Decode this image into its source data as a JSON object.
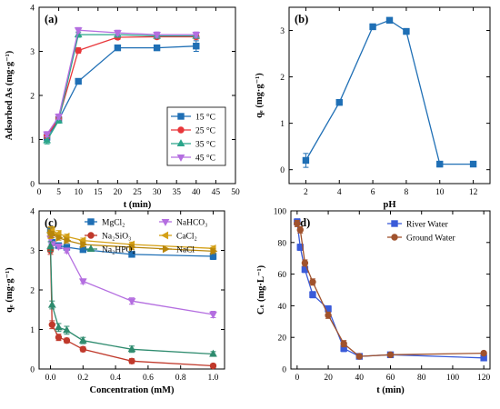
{
  "chart_data": [
    {
      "type": "line",
      "panel_label": "(a)",
      "xlabel": "t (min)",
      "ylabel": "Adsorbed As (mg·g⁻¹)",
      "xlim": [
        0,
        50
      ],
      "ylim": [
        0,
        4
      ],
      "xticks": [
        0,
        5,
        10,
        15,
        20,
        25,
        30,
        35,
        40,
        45,
        50
      ],
      "yticks": [
        0,
        1,
        2,
        3,
        4
      ],
      "legend_position": "bottom-right",
      "series": [
        {
          "name": "15 °C",
          "color": "#1f6fb5",
          "marker": "square",
          "x": [
            2,
            5,
            10,
            20,
            30,
            40
          ],
          "y": [
            1.05,
            1.45,
            2.32,
            3.08,
            3.08,
            3.12
          ],
          "err": [
            0.06,
            0.06,
            0.06,
            0.06,
            0.06,
            0.12
          ]
        },
        {
          "name": "25 °C",
          "color": "#e8363a",
          "marker": "circle",
          "x": [
            2,
            5,
            10,
            20,
            30,
            40
          ],
          "y": [
            1.08,
            1.48,
            3.02,
            3.32,
            3.33,
            3.33
          ],
          "err": [
            0.06,
            0.06,
            0.06,
            0.05,
            0.05,
            0.05
          ]
        },
        {
          "name": "35 °C",
          "color": "#2aa58a",
          "marker": "triangle",
          "x": [
            2,
            5,
            10,
            20,
            30,
            40
          ],
          "y": [
            0.98,
            1.43,
            3.38,
            3.38,
            3.35,
            3.35
          ],
          "err": [
            0.08,
            0.06,
            0.06,
            0.06,
            0.05,
            0.05
          ]
        },
        {
          "name": "45 °C",
          "color": "#b46ee0",
          "marker": "triangle-down",
          "x": [
            2,
            5,
            10,
            20,
            30,
            40
          ],
          "y": [
            1.12,
            1.52,
            3.48,
            3.42,
            3.38,
            3.38
          ],
          "err": [
            0.06,
            0.06,
            0.06,
            0.06,
            0.06,
            0.06
          ]
        }
      ]
    },
    {
      "type": "line",
      "panel_label": "(b)",
      "xlabel": "pH",
      "ylabel": "qₑ (mg·g⁻¹)",
      "xlim": [
        1,
        13
      ],
      "ylim": [
        -0.3,
        3.5
      ],
      "xticks": [
        2,
        4,
        6,
        8,
        10,
        12
      ],
      "yticks": [
        0,
        1,
        2,
        3
      ],
      "series": [
        {
          "name": "",
          "color": "#1f6fb5",
          "marker": "square",
          "x": [
            2,
            4,
            6,
            7,
            8,
            10,
            12
          ],
          "y": [
            0.2,
            1.45,
            3.08,
            3.22,
            2.98,
            0.12,
            0.12
          ],
          "err": [
            0.15,
            0.06,
            0.06,
            0.05,
            0.06,
            0.06,
            0.05
          ]
        }
      ]
    },
    {
      "type": "line",
      "panel_label": "(c)",
      "xlabel": "Concentration (mM)",
      "ylabel": "qₑ (mg·g⁻¹)",
      "xlim": [
        -0.07,
        1.07
      ],
      "ylim": [
        0,
        4
      ],
      "xticks": [
        0.0,
        0.2,
        0.4,
        0.6,
        0.8,
        1.0
      ],
      "yticks": [
        0,
        1,
        2,
        3,
        4
      ],
      "series": [
        {
          "name": "MgCl₂",
          "color": "#1f6fb5",
          "marker": "square",
          "x": [
            0,
            0.01,
            0.05,
            0.1,
            0.2,
            0.5,
            1.0
          ],
          "y": [
            3.5,
            3.2,
            3.12,
            3.08,
            3.02,
            2.9,
            2.85
          ],
          "err": [
            0.08,
            0.08,
            0.06,
            0.06,
            0.06,
            0.06,
            0.08
          ]
        },
        {
          "name": "NaHCO₃",
          "color": "#b46ee0",
          "marker": "triangle-down",
          "x": [
            0,
            0.01,
            0.05,
            0.1,
            0.2,
            0.5,
            1.0
          ],
          "y": [
            3.3,
            3.15,
            3.1,
            3.0,
            2.22,
            1.72,
            1.38
          ],
          "err": [
            0.08,
            0.08,
            0.06,
            0.06,
            0.06,
            0.08,
            0.08
          ]
        },
        {
          "name": "Na₂SiO₃",
          "color": "#c0392b",
          "marker": "circle",
          "x": [
            0,
            0.01,
            0.05,
            0.1,
            0.2,
            0.5,
            1.0
          ],
          "y": [
            3.0,
            1.12,
            0.8,
            0.72,
            0.5,
            0.2,
            0.08
          ],
          "err": [
            0.1,
            0.1,
            0.08,
            0.06,
            0.06,
            0.06,
            0.05
          ]
        },
        {
          "name": "CaCl₂",
          "color": "#d4a017",
          "marker": "triangle-left",
          "x": [
            0,
            0.01,
            0.05,
            0.1,
            0.2,
            0.5,
            1.0
          ],
          "y": [
            3.45,
            3.5,
            3.42,
            3.35,
            3.25,
            3.15,
            3.05
          ],
          "err": [
            0.15,
            0.1,
            0.08,
            0.06,
            0.06,
            0.06,
            0.06
          ]
        },
        {
          "name": "Na₂HPO₄",
          "color": "#2e8b6e",
          "marker": "triangle",
          "x": [
            0,
            0.01,
            0.05,
            0.1,
            0.2,
            0.5,
            1.0
          ],
          "y": [
            3.1,
            1.62,
            1.05,
            0.98,
            0.72,
            0.5,
            0.38
          ],
          "err": [
            0.12,
            0.1,
            0.1,
            0.1,
            0.08,
            0.08,
            0.06
          ]
        },
        {
          "name": "NaCl",
          "color": "#b8860b",
          "marker": "triangle-right",
          "x": [
            0,
            0.01,
            0.05,
            0.1,
            0.2,
            0.5,
            1.0
          ],
          "y": [
            3.45,
            3.4,
            3.32,
            3.25,
            3.15,
            3.08,
            2.98
          ],
          "err": [
            0.12,
            0.08,
            0.06,
            0.06,
            0.06,
            0.06,
            0.06
          ]
        }
      ]
    },
    {
      "type": "line",
      "panel_label": "(d)",
      "xlabel": "t (min)",
      "ylabel": "Cₜ (mg·L⁻¹)",
      "xlim": [
        -4,
        124
      ],
      "ylim": [
        0,
        100
      ],
      "xticks": [
        0,
        20,
        40,
        60,
        80,
        100,
        120
      ],
      "yticks": [
        0,
        20,
        40,
        60,
        80,
        100
      ],
      "legend_position": "top-right",
      "series": [
        {
          "name": "River Water",
          "color": "#3a5bd9",
          "marker": "square",
          "x": [
            0,
            2,
            5,
            10,
            20,
            30,
            40,
            60,
            120
          ],
          "y": [
            93,
            77,
            63,
            47,
            38,
            13,
            8,
            9,
            7
          ],
          "err": [
            2,
            2,
            2,
            2,
            2,
            2,
            1,
            1,
            1
          ]
        },
        {
          "name": "Ground Water",
          "color": "#a0522d",
          "marker": "circle",
          "x": [
            0,
            2,
            5,
            10,
            20,
            30,
            40,
            60,
            120
          ],
          "y": [
            92,
            88,
            67,
            55,
            34,
            16,
            8,
            9,
            10
          ],
          "err": [
            2,
            2,
            2,
            2,
            2,
            2,
            1,
            1,
            1
          ]
        }
      ]
    }
  ]
}
